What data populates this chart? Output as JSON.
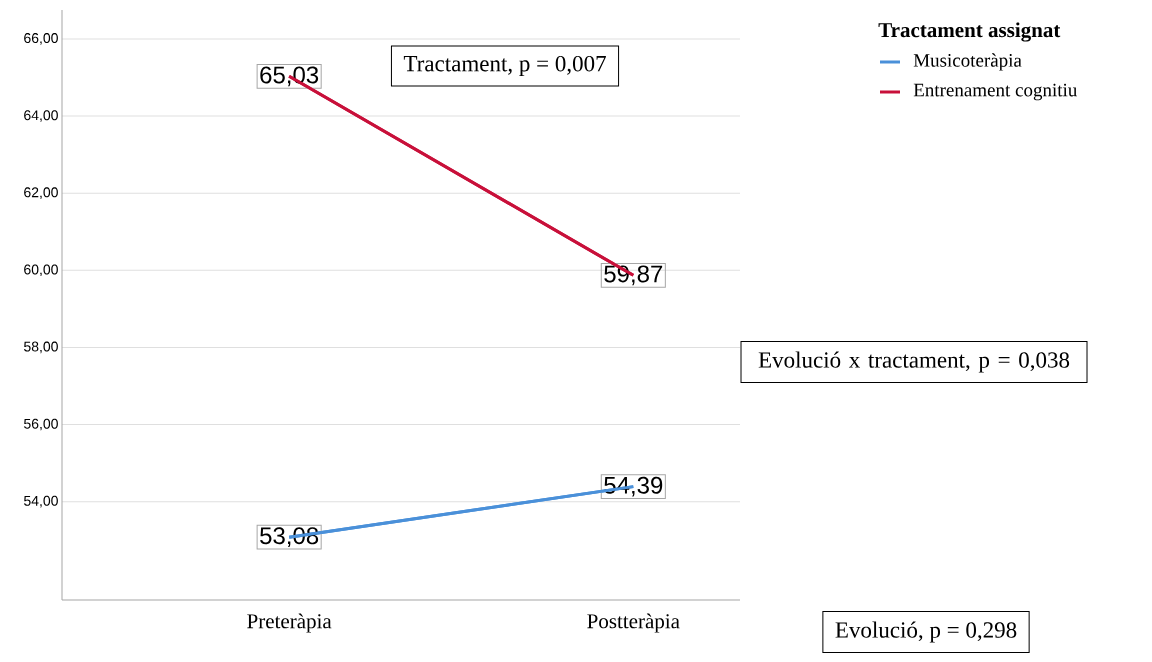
{
  "chart_data": {
    "type": "line",
    "categories": [
      "Preteràpia",
      "Postteràpia"
    ],
    "series": [
      {
        "name": "Musicoteràpia",
        "color": "#4a90d9",
        "values": [
          53.08,
          54.39
        ],
        "value_labels": [
          "53,08",
          "54,39"
        ]
      },
      {
        "name": "Entrenament cognitiu",
        "color": "#c8103a",
        "values": [
          65.03,
          59.87
        ],
        "value_labels": [
          "65,03",
          "59,87"
        ]
      }
    ],
    "ylim": [
      51.45,
      66.75
    ],
    "yticks": [
      {
        "value": 54,
        "label": "54,00"
      },
      {
        "value": 56,
        "label": "56,00"
      },
      {
        "value": 58,
        "label": "58,00"
      },
      {
        "value": 60,
        "label": "60,00"
      },
      {
        "value": 62,
        "label": "62,00"
      },
      {
        "value": 64,
        "label": "64,00"
      },
      {
        "value": 66,
        "label": "66,00"
      }
    ],
    "grid": "y",
    "legend": "top right",
    "legend_title": "Tractament assignat",
    "annotations": [
      "Tractament, p = 0,007",
      "Evolució x tractament, p = 0,038",
      "Evolució, p = 0,298"
    ]
  }
}
